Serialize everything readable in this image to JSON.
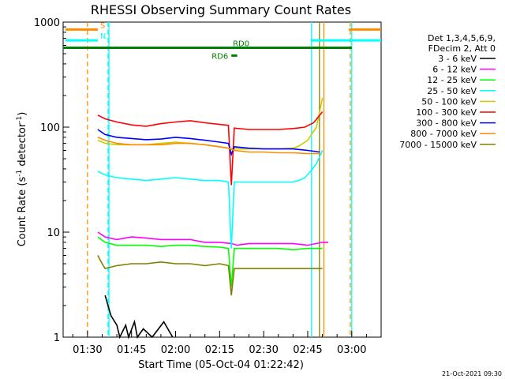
{
  "chart_data": {
    "type": "line",
    "title": "RHESSI Observing Summary Count Rates",
    "xlabel": "Start Time (05-Oct-04 01:22:42)",
    "ylabel_main": "Count Rate (s",
    "ylabel_sup1": "-1",
    "ylabel_mid": " detector",
    "ylabel_sup2": "-1",
    "ylabel_end": ")",
    "y_scale": "log",
    "ylim": [
      1,
      1000
    ],
    "xlim_minutes": [
      -8.3,
      100
    ],
    "x_ticks": [
      {
        "label": "01:30",
        "min": 0
      },
      {
        "label": "01:45",
        "min": 15
      },
      {
        "label": "02:00",
        "min": 30
      },
      {
        "label": "02:15",
        "min": 45
      },
      {
        "label": "02:30",
        "min": 60
      },
      {
        "label": "02:45",
        "min": 75
      },
      {
        "label": "03:00",
        "min": 90
      }
    ],
    "y_ticks": [
      {
        "label": "1",
        "v": 1
      },
      {
        "label": "10",
        "v": 10
      },
      {
        "label": "100",
        "v": 100
      },
      {
        "label": "1000",
        "v": 1000
      }
    ],
    "legend_header": [
      "Det 1,3,4,5,6,9,",
      "FDecim 2, Att 0"
    ],
    "legend_position": "right",
    "series": [
      {
        "name": "3 - 6 keV",
        "color": "#000000",
        "points": [
          [
            6,
            2.5
          ],
          [
            7,
            2
          ],
          [
            8,
            1.6
          ],
          [
            10,
            1.3
          ],
          [
            11,
            1
          ],
          [
            13,
            1.3
          ],
          [
            14,
            1
          ],
          [
            16,
            1.4
          ],
          [
            17,
            1
          ],
          [
            19,
            1.2
          ],
          [
            22,
            1
          ],
          [
            26,
            1.4
          ],
          [
            29,
            1
          ]
        ]
      },
      {
        "name": "6 - 12 keV",
        "color": "#ff00ff",
        "points": [
          [
            3.5,
            10
          ],
          [
            6,
            9
          ],
          [
            10,
            8.5
          ],
          [
            15,
            9
          ],
          [
            20,
            8.8
          ],
          [
            25,
            8.5
          ],
          [
            30,
            8.5
          ],
          [
            35,
            8.5
          ],
          [
            40,
            8
          ],
          [
            45,
            8
          ],
          [
            49,
            7.8
          ],
          [
            51,
            7.5
          ],
          [
            55,
            7.8
          ],
          [
            60,
            7.8
          ],
          [
            65,
            7.8
          ],
          [
            70,
            7.8
          ],
          [
            75,
            7.5
          ],
          [
            78,
            7.8
          ],
          [
            80,
            8
          ],
          [
            82,
            8
          ]
        ]
      },
      {
        "name": "12 - 25 keV",
        "color": "#00ff00",
        "points": [
          [
            3.5,
            9
          ],
          [
            6,
            8
          ],
          [
            10,
            7.5
          ],
          [
            15,
            7.5
          ],
          [
            20,
            7.5
          ],
          [
            25,
            7.3
          ],
          [
            30,
            7.5
          ],
          [
            35,
            7.5
          ],
          [
            40,
            7.3
          ],
          [
            45,
            7.2
          ],
          [
            48,
            7
          ],
          [
            49,
            3
          ],
          [
            50,
            7
          ],
          [
            55,
            7
          ],
          [
            60,
            7
          ],
          [
            65,
            7
          ],
          [
            70,
            6.8
          ],
          [
            75,
            7
          ],
          [
            78,
            7
          ],
          [
            80,
            7
          ]
        ]
      },
      {
        "name": "25 - 50 keV",
        "color": "#00ffff",
        "points": [
          [
            3.5,
            38
          ],
          [
            6,
            35
          ],
          [
            10,
            33
          ],
          [
            15,
            32
          ],
          [
            20,
            31
          ],
          [
            25,
            32
          ],
          [
            30,
            33
          ],
          [
            35,
            32
          ],
          [
            40,
            31
          ],
          [
            45,
            31
          ],
          [
            48,
            30
          ],
          [
            49,
            7
          ],
          [
            50,
            30
          ],
          [
            55,
            30
          ],
          [
            60,
            30
          ],
          [
            65,
            30
          ],
          [
            70,
            30
          ],
          [
            72,
            31
          ],
          [
            74,
            33
          ],
          [
            76,
            38
          ],
          [
            78,
            45
          ],
          [
            80,
            60
          ]
        ]
      },
      {
        "name": "50 - 100 keV",
        "color": "#cccc00",
        "points": [
          [
            3.5,
            75
          ],
          [
            6,
            70
          ],
          [
            10,
            68
          ],
          [
            15,
            68
          ],
          [
            20,
            68
          ],
          [
            25,
            70
          ],
          [
            30,
            72
          ],
          [
            35,
            70
          ],
          [
            40,
            68
          ],
          [
            45,
            65
          ],
          [
            48,
            63
          ],
          [
            50,
            62
          ],
          [
            55,
            62
          ],
          [
            60,
            62
          ],
          [
            65,
            62
          ],
          [
            70,
            63
          ],
          [
            72,
            66
          ],
          [
            75,
            75
          ],
          [
            78,
            100
          ],
          [
            80,
            190
          ]
        ]
      },
      {
        "name": "100 - 300 keV",
        "color": "#ff0000",
        "points": [
          [
            3.5,
            130
          ],
          [
            6,
            120
          ],
          [
            10,
            112
          ],
          [
            15,
            105
          ],
          [
            20,
            102
          ],
          [
            25,
            108
          ],
          [
            30,
            112
          ],
          [
            35,
            115
          ],
          [
            40,
            110
          ],
          [
            45,
            106
          ],
          [
            48,
            104
          ],
          [
            49,
            28
          ],
          [
            50,
            98
          ],
          [
            55,
            95
          ],
          [
            60,
            95
          ],
          [
            65,
            95
          ],
          [
            70,
            97
          ],
          [
            74,
            100
          ],
          [
            77,
            110
          ],
          [
            80,
            140
          ]
        ]
      },
      {
        "name": "300 - 800 keV",
        "color": "#0000ff",
        "points": [
          [
            3.5,
            95
          ],
          [
            6,
            85
          ],
          [
            10,
            80
          ],
          [
            15,
            78
          ],
          [
            20,
            76
          ],
          [
            25,
            77
          ],
          [
            30,
            80
          ],
          [
            35,
            78
          ],
          [
            40,
            75
          ],
          [
            45,
            72
          ],
          [
            48,
            70
          ],
          [
            49,
            55
          ],
          [
            50,
            65
          ],
          [
            55,
            63
          ],
          [
            60,
            62
          ],
          [
            65,
            62
          ],
          [
            70,
            62
          ],
          [
            75,
            60
          ],
          [
            79,
            58
          ]
        ]
      },
      {
        "name": "800 - 7000 keV",
        "color": "#ff8c00",
        "points": [
          [
            3.5,
            80
          ],
          [
            6,
            75
          ],
          [
            10,
            70
          ],
          [
            15,
            68
          ],
          [
            20,
            68
          ],
          [
            25,
            68
          ],
          [
            30,
            70
          ],
          [
            35,
            70
          ],
          [
            40,
            68
          ],
          [
            45,
            65
          ],
          [
            48,
            63
          ],
          [
            50,
            60
          ],
          [
            55,
            58
          ],
          [
            60,
            58
          ],
          [
            65,
            57
          ],
          [
            70,
            57
          ],
          [
            75,
            56
          ],
          [
            79,
            56
          ]
        ]
      },
      {
        "name": "7000 - 15000 keV",
        "color": "#808000",
        "points": [
          [
            3.5,
            6
          ],
          [
            5,
            5
          ],
          [
            6,
            4.5
          ],
          [
            10,
            4.8
          ],
          [
            15,
            5
          ],
          [
            20,
            5
          ],
          [
            25,
            5.2
          ],
          [
            30,
            5
          ],
          [
            35,
            5
          ],
          [
            40,
            4.8
          ],
          [
            45,
            5
          ],
          [
            48,
            4.8
          ],
          [
            49,
            2.5
          ],
          [
            50,
            4.5
          ],
          [
            55,
            4.5
          ],
          [
            60,
            4.5
          ],
          [
            65,
            4.5
          ],
          [
            70,
            4.5
          ],
          [
            75,
            4.5
          ],
          [
            80,
            4.5
          ]
        ]
      }
    ],
    "status_bars": [
      {
        "label": "S",
        "color": "#ff8c00",
        "segments": [
          [
            -7.5,
            3.5
          ],
          [
            89,
            100
          ]
        ],
        "level": 850
      },
      {
        "label": "N",
        "color": "#00ffff",
        "segments": [
          [
            -7.5,
            3.5
          ],
          [
            76,
            100
          ]
        ],
        "level": 670
      },
      {
        "label": "RD0",
        "color": "#008000",
        "segments": [
          [
            -8.3,
            90
          ]
        ],
        "level": 570
      },
      {
        "label": "RD6",
        "color": "#008000",
        "segments": [
          [
            49,
            51
          ]
        ],
        "level": 480
      }
    ],
    "vertical_markers": [
      {
        "color": "#ff8c00",
        "dashed": true,
        "min": 0
      },
      {
        "color": "#00ffff",
        "dashed": true,
        "min": 7
      },
      {
        "color": "#00ffff",
        "dashed": false,
        "min": 7.3
      },
      {
        "color": "#00ffff",
        "dashed": false,
        "min": 76.3
      },
      {
        "color": "#808000",
        "dashed": false,
        "min": 79
      },
      {
        "color": "#ff8c00",
        "dashed": false,
        "min": 80.5
      },
      {
        "color": "#ff8c00",
        "dashed": true,
        "min": 89.5
      },
      {
        "color": "#00ffff",
        "dashed": false,
        "min": 90
      }
    ],
    "footer_date": "21-Oct-2021 09:30"
  }
}
